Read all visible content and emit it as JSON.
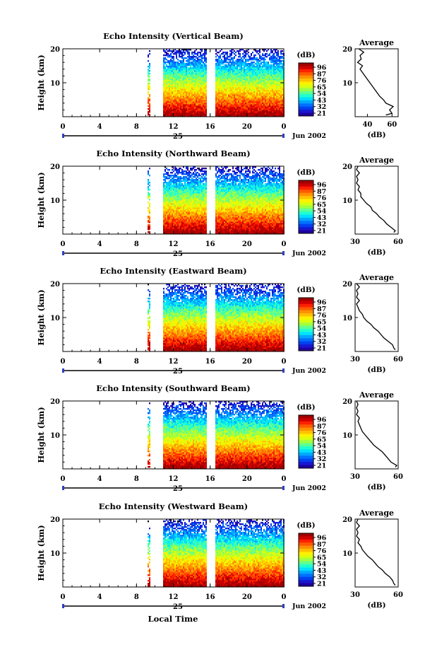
{
  "figure": {
    "xlabel_bottom": "Local Time",
    "date_label": "Jun 2002",
    "day_label": "25",
    "cbar_unit": "(dB)",
    "avg_title": "Average",
    "avg_xlabel": "(dB)"
  },
  "colorbar": {
    "ticks": [
      "96",
      "87",
      "76",
      "65",
      "54",
      "43",
      "32",
      "21"
    ],
    "colors": [
      "#a00000",
      "#d00000",
      "#ff2000",
      "#ff5a00",
      "#ff9000",
      "#ffc000",
      "#fff000",
      "#d8ff10",
      "#a0ff40",
      "#60ff90",
      "#20ffd0",
      "#00e0ff",
      "#00a8ff",
      "#0070ff",
      "#0040f0",
      "#1818d0",
      "#2000a0"
    ]
  },
  "chart_data": [
    {
      "type": "heatmap",
      "title": "Echo Intensity (Vertical Beam)",
      "ylabel": "Height (km)",
      "x_ticks": [
        "0",
        "4",
        "8",
        "12",
        "16",
        "20",
        "0"
      ],
      "y_ticks": [
        "20",
        "10"
      ],
      "xlim": [
        0,
        24
      ],
      "ylim": [
        0,
        20
      ],
      "data_gap_hours": [
        [
          0,
          9.2
        ],
        [
          9.4,
          10.8
        ],
        [
          15.5,
          16.5
        ]
      ],
      "average_profile": {
        "x_ticks": [
          "40",
          "60"
        ],
        "xlim": [
          30,
          65
        ],
        "points": [
          [
            55,
            0.5
          ],
          [
            60,
            1
          ],
          [
            58,
            2
          ],
          [
            61,
            3
          ],
          [
            55,
            4
          ],
          [
            53,
            5
          ],
          [
            50,
            6
          ],
          [
            48,
            7
          ],
          [
            46,
            8
          ],
          [
            44,
            9
          ],
          [
            42,
            10
          ],
          [
            40,
            11
          ],
          [
            38,
            12
          ],
          [
            36,
            13
          ],
          [
            34,
            14
          ],
          [
            36,
            15
          ],
          [
            32,
            16
          ],
          [
            35,
            17
          ],
          [
            34,
            18
          ],
          [
            37,
            19
          ],
          [
            33,
            20
          ]
        ]
      }
    },
    {
      "type": "heatmap",
      "title": "Echo Intensity (Northward Beam)",
      "ylabel": "Height (km)",
      "x_ticks": [
        "0",
        "4",
        "8",
        "12",
        "16",
        "20",
        "0"
      ],
      "y_ticks": [
        "20",
        "10"
      ],
      "xlim": [
        0,
        24
      ],
      "ylim": [
        0,
        20
      ],
      "data_gap_hours": [
        [
          0,
          9.2
        ],
        [
          9.4,
          10.8
        ],
        [
          15.5,
          16.5
        ]
      ],
      "average_profile": {
        "x_ticks": [
          "30",
          "60"
        ],
        "xlim": [
          30,
          60
        ],
        "points": [
          [
            57,
            0.5
          ],
          [
            58,
            1
          ],
          [
            55,
            2
          ],
          [
            52,
            3
          ],
          [
            50,
            4
          ],
          [
            47,
            5
          ],
          [
            45,
            6
          ],
          [
            42,
            7
          ],
          [
            41,
            8
          ],
          [
            38,
            9
          ],
          [
            36,
            10
          ],
          [
            34,
            11
          ],
          [
            34,
            12
          ],
          [
            32,
            13
          ],
          [
            33,
            14
          ],
          [
            31,
            15
          ],
          [
            32,
            16
          ],
          [
            31,
            17
          ],
          [
            33,
            18
          ],
          [
            31,
            19
          ],
          [
            32,
            20
          ]
        ]
      }
    },
    {
      "type": "heatmap",
      "title": "Echo Intensity (Eastward Beam)",
      "ylabel": "Height (km)",
      "x_ticks": [
        "0",
        "4",
        "8",
        "12",
        "16",
        "20",
        "0"
      ],
      "y_ticks": [
        "20",
        "10"
      ],
      "xlim": [
        0,
        24
      ],
      "ylim": [
        0,
        20
      ],
      "data_gap_hours": [
        [
          0,
          9.2
        ],
        [
          9.4,
          10.8
        ],
        [
          15.5,
          16.5
        ]
      ],
      "average_profile": {
        "x_ticks": [
          "30",
          "60"
        ],
        "xlim": [
          30,
          60
        ],
        "points": [
          [
            58,
            0.5
          ],
          [
            57,
            1
          ],
          [
            56,
            2
          ],
          [
            53,
            3
          ],
          [
            50,
            4
          ],
          [
            48,
            5
          ],
          [
            46,
            6
          ],
          [
            43,
            7
          ],
          [
            41,
            8
          ],
          [
            38,
            9
          ],
          [
            36,
            10
          ],
          [
            35,
            11
          ],
          [
            33,
            12
          ],
          [
            32,
            13
          ],
          [
            31,
            14
          ],
          [
            33,
            15
          ],
          [
            31,
            16
          ],
          [
            32,
            17
          ],
          [
            31,
            18
          ],
          [
            33,
            19
          ],
          [
            31,
            20
          ]
        ]
      }
    },
    {
      "type": "heatmap",
      "title": "Echo Intensity (Southward Beam)",
      "ylabel": "Height (km)",
      "x_ticks": [
        "0",
        "4",
        "8",
        "12",
        "16",
        "20",
        "0"
      ],
      "y_ticks": [
        "20",
        "10"
      ],
      "xlim": [
        0,
        24
      ],
      "ylim": [
        0,
        20
      ],
      "data_gap_hours": [
        [
          0,
          9.2
        ],
        [
          9.4,
          10.8
        ],
        [
          15.5,
          16.5
        ]
      ],
      "average_profile": {
        "x_ticks": [
          "30",
          "60"
        ],
        "xlim": [
          30,
          60
        ],
        "points": [
          [
            58,
            0.5
          ],
          [
            59,
            1
          ],
          [
            55,
            2
          ],
          [
            53,
            3
          ],
          [
            51,
            4
          ],
          [
            49,
            5
          ],
          [
            46,
            6
          ],
          [
            43,
            7
          ],
          [
            41,
            8
          ],
          [
            39,
            9
          ],
          [
            37,
            10
          ],
          [
            35,
            11
          ],
          [
            34,
            12
          ],
          [
            33,
            13
          ],
          [
            32,
            14
          ],
          [
            33,
            15
          ],
          [
            31,
            16
          ],
          [
            32,
            17
          ],
          [
            31,
            18
          ],
          [
            32,
            19
          ],
          [
            31,
            20
          ]
        ]
      }
    },
    {
      "type": "heatmap",
      "title": "Echo Intensity (Westward Beam)",
      "ylabel": "Height (km)",
      "x_ticks": [
        "0",
        "4",
        "8",
        "12",
        "16",
        "20",
        "0"
      ],
      "y_ticks": [
        "20",
        "10"
      ],
      "xlim": [
        0,
        24
      ],
      "ylim": [
        0,
        20
      ],
      "data_gap_hours": [
        [
          0,
          9.2
        ],
        [
          9.4,
          10.8
        ],
        [
          15.5,
          16.5
        ]
      ],
      "average_profile": {
        "x_ticks": [
          "30",
          "60"
        ],
        "xlim": [
          30,
          60
        ],
        "points": [
          [
            58,
            0.5
          ],
          [
            57,
            1
          ],
          [
            56,
            2
          ],
          [
            54,
            3
          ],
          [
            51,
            4
          ],
          [
            49,
            5
          ],
          [
            46,
            6
          ],
          [
            44,
            7
          ],
          [
            42,
            8
          ],
          [
            39,
            9
          ],
          [
            37,
            10
          ],
          [
            35,
            11
          ],
          [
            34,
            12
          ],
          [
            32,
            13
          ],
          [
            33,
            14
          ],
          [
            31,
            15
          ],
          [
            32,
            16
          ],
          [
            31,
            17
          ],
          [
            33,
            18
          ],
          [
            31,
            19
          ],
          [
            32,
            20
          ]
        ]
      }
    }
  ]
}
